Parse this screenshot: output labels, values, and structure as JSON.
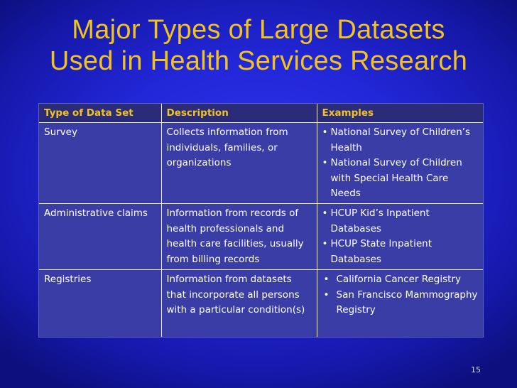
{
  "slide": {
    "title_line1": "Major Types of Large Datasets",
    "title_line2": "Used in Health Services Research",
    "number": "15"
  },
  "colors": {
    "background": "#2227d8",
    "title": "#f2c21d",
    "header_row": "#2a2c7a",
    "body_row": "#3a3da6",
    "grid_line": "#f3efc6"
  },
  "table": {
    "headers": [
      "Type of Data Set",
      "Description",
      "Examples"
    ],
    "rows": [
      {
        "type": "Survey",
        "description": "Collects information from individuals, families, or organizations",
        "examples": [
          "National Survey of Children’s Health",
          "National Survey of Children with Special Health Care Needs"
        ]
      },
      {
        "type": "Administrative claims",
        "description": "Information from records of health professionals and health care facilities, usually from billing records",
        "examples": [
          "HCUP Kid’s Inpatient Databases",
          "HCUP State Inpatient Databases"
        ]
      },
      {
        "type": "Registries",
        "description": "Information from datasets that incorporate all persons with a particular condition(s)",
        "examples": [
          "California Cancer Registry",
          "San Francisco Mammography Registry"
        ]
      }
    ]
  }
}
